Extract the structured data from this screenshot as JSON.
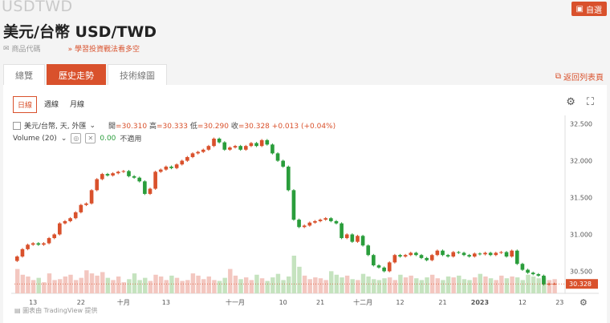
{
  "header": {
    "ghost_symbol": "USDTWD",
    "title": "美元/台幣 USD/TWD",
    "favorite_label": "自選",
    "sub_left": "商品代碼",
    "sub_link": "學習投資戰法看多空"
  },
  "tabs": [
    {
      "label": "總覽"
    },
    {
      "label": "歷史走勢"
    },
    {
      "label": "技術線圖"
    }
  ],
  "active_tab": 1,
  "back_link": "返回列表頁",
  "periods": [
    "日線",
    "週線",
    "月線"
  ],
  "legend": {
    "symbol": "美元/台幣, 天, 外匯",
    "open_label": "開",
    "open": "30.310",
    "high_label": "高",
    "high": "30.333",
    "low_label": "低",
    "low": "30.290",
    "close_label": "收",
    "close": "30.328",
    "change": "+0.013 (+0.04%)",
    "volume_label": "Volume (20)",
    "volume_value": "0.00",
    "volume_note": "不適用"
  },
  "footer": "圖表由 TradingView 提供",
  "colors": {
    "up": "#d9512c",
    "down": "#2a9d3b",
    "vol_up": "#f3c7c0",
    "vol_down": "#c5e3bf"
  },
  "chart_data": {
    "type": "candlestick",
    "ylim": [
      30.2,
      32.55
    ],
    "y_ticks": [
      "32.500",
      "32.000",
      "31.500",
      "31.000",
      "30.500"
    ],
    "last_price": "30.328",
    "x_ticks": [
      "13",
      "22",
      "十月",
      "13",
      "十一月",
      "10",
      "21",
      "十二月",
      "12",
      "21",
      "2023",
      "12",
      "23"
    ],
    "close": [
      30.7,
      30.8,
      30.86,
      30.88,
      30.86,
      30.88,
      30.95,
      31.0,
      31.15,
      31.18,
      31.22,
      31.3,
      31.4,
      31.42,
      31.6,
      31.75,
      31.82,
      31.8,
      31.83,
      31.85,
      31.86,
      31.79,
      31.77,
      31.72,
      31.55,
      31.62,
      31.85,
      31.88,
      31.92,
      31.9,
      31.95,
      32.0,
      32.05,
      32.1,
      32.12,
      32.15,
      32.2,
      32.3,
      32.25,
      32.15,
      32.18,
      32.2,
      32.15,
      32.2,
      32.24,
      32.2,
      32.28,
      32.22,
      32.1,
      32.0,
      31.92,
      31.6,
      31.2,
      31.1,
      31.12,
      31.16,
      31.18,
      31.2,
      31.22,
      31.18,
      31.15,
      30.95,
      31.0,
      30.9,
      30.98,
      30.85,
      30.72,
      30.58,
      30.55,
      30.5,
      30.62,
      30.72,
      30.7,
      30.72,
      30.75,
      30.72,
      30.68,
      30.65,
      30.72,
      30.78,
      30.72,
      30.7,
      30.76,
      30.75,
      30.72,
      30.7,
      30.74,
      30.73,
      30.75,
      30.72,
      30.75,
      30.76,
      30.7,
      30.78,
      30.6,
      30.52,
      30.48,
      30.46,
      30.44,
      30.32,
      30.33,
      30.33
    ],
    "volume": [
      0.55,
      0.42,
      0.38,
      0.3,
      0.35,
      0.25,
      0.45,
      0.3,
      0.32,
      0.38,
      0.42,
      0.3,
      0.35,
      0.52,
      0.45,
      0.4,
      0.48,
      0.35,
      0.3,
      0.38,
      0.25,
      0.32,
      0.45,
      0.3,
      0.35,
      0.28,
      0.42,
      0.38,
      0.3,
      0.4,
      0.35,
      0.28,
      0.3,
      0.45,
      0.4,
      0.32,
      0.38,
      0.3,
      0.28,
      0.35,
      0.55,
      0.4,
      0.32,
      0.36,
      0.3,
      0.42,
      0.34,
      0.28,
      0.36,
      0.44,
      0.3,
      0.38,
      0.85,
      0.6,
      0.4,
      0.32,
      0.36,
      0.34,
      0.3,
      0.5,
      0.42,
      0.36,
      0.4,
      0.32,
      0.3,
      0.44,
      0.38,
      0.32,
      0.3,
      0.34,
      0.36,
      0.3,
      0.42,
      0.36,
      0.4,
      0.34,
      0.3,
      0.36,
      0.42,
      0.34,
      0.3,
      0.38,
      0.36,
      0.4,
      0.32,
      0.3,
      0.36,
      0.44,
      0.38,
      0.34,
      0.3,
      0.4,
      0.34,
      0.38,
      0.36,
      0.3,
      0.42,
      0.38,
      0.34,
      0.36,
      0.3,
      0.32
    ]
  }
}
